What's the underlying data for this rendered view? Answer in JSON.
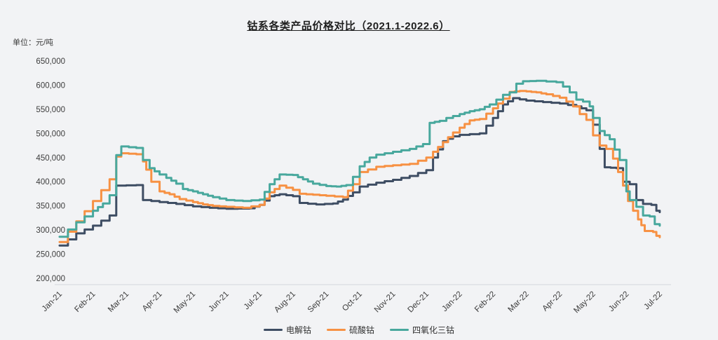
{
  "title": "钴系各类产品价格对比（2021.1-2022.6）",
  "unit_label": "单位：元/吨",
  "background_color": "#f2f3f5",
  "axis_line_color": "#e3e5e9",
  "tick_text_color": "#3c3c3c",
  "chart_data": {
    "type": "line",
    "title": "钴系各类产品价格对比（2021.1-2022.6）",
    "ylabel": "单位：元/吨",
    "grid": false,
    "legend_position": "bottom",
    "line_style": "step-weekly",
    "ylim": [
      200000,
      650000
    ],
    "y_ticks": [
      650000,
      600000,
      550000,
      500000,
      450000,
      400000,
      350000,
      300000,
      250000,
      200000
    ],
    "x_tick_labels": [
      "Jan-21",
      "Feb-21",
      "Mar-21",
      "Apr-21",
      "May-21",
      "Jun-21",
      "Jul-21",
      "Aug-21",
      "Sep-21",
      "Oct-21",
      "Nov-21",
      "Dec-21",
      "Jan-22",
      "Feb-22",
      "Mar-22",
      "Apr-22",
      "May-22",
      "Jun-22",
      "Jul-22"
    ],
    "x_unit_note": "x = months since Jan-21 tick (0 .. 18 = Jul-22)",
    "series": [
      {
        "name": "电解钴",
        "color": "#3e4d63",
        "points": [
          [
            0,
            268000
          ],
          [
            0.5,
            293000
          ],
          [
            1,
            309000
          ],
          [
            1.5,
            330000
          ],
          [
            1.7,
            392000
          ],
          [
            2.3,
            393000
          ],
          [
            2.5,
            362000
          ],
          [
            3,
            358000
          ],
          [
            3.5,
            354000
          ],
          [
            4,
            349000
          ],
          [
            4.5,
            346000
          ],
          [
            5,
            344000
          ],
          [
            5.7,
            345000
          ],
          [
            6,
            352000
          ],
          [
            6.3,
            370000
          ],
          [
            6.6,
            374000
          ],
          [
            7,
            370000
          ],
          [
            7.2,
            356000
          ],
          [
            7.7,
            353000
          ],
          [
            8.2,
            355000
          ],
          [
            8.5,
            363000
          ],
          [
            8.8,
            378000
          ],
          [
            9,
            390000
          ],
          [
            9.5,
            398000
          ],
          [
            10,
            404000
          ],
          [
            10.5,
            412000
          ],
          [
            11,
            424000
          ],
          [
            11.2,
            450000
          ],
          [
            11.5,
            484000
          ],
          [
            11.8,
            494000
          ],
          [
            12,
            497000
          ],
          [
            12.6,
            500000
          ],
          [
            13,
            532000
          ],
          [
            13.3,
            560000
          ],
          [
            13.6,
            573000
          ],
          [
            14,
            568000
          ],
          [
            14.5,
            565000
          ],
          [
            15,
            562000
          ],
          [
            15.5,
            556000
          ],
          [
            15.8,
            548000
          ],
          [
            16,
            518000
          ],
          [
            16.2,
            468000
          ],
          [
            16.35,
            430000
          ],
          [
            16.7,
            428000
          ],
          [
            16.9,
            400000
          ],
          [
            17.1,
            395000
          ],
          [
            17.3,
            362000
          ],
          [
            17.5,
            354000
          ],
          [
            17.75,
            352000
          ],
          [
            17.9,
            340000
          ],
          [
            18,
            337000
          ]
        ]
      },
      {
        "name": "硫酸钴",
        "color": "#f79143",
        "points": [
          [
            0,
            275000
          ],
          [
            0.5,
            318000
          ],
          [
            1,
            360000
          ],
          [
            1.5,
            405000
          ],
          [
            1.7,
            452000
          ],
          [
            1.85,
            459000
          ],
          [
            2.3,
            457000
          ],
          [
            2.5,
            442000
          ],
          [
            2.6,
            425000
          ],
          [
            2.75,
            400000
          ],
          [
            3,
            380000
          ],
          [
            3.3,
            374000
          ],
          [
            3.6,
            364000
          ],
          [
            4,
            358000
          ],
          [
            4.3,
            353000
          ],
          [
            4.6,
            350000
          ],
          [
            5,
            348000
          ],
          [
            5.5,
            346000
          ],
          [
            6,
            352000
          ],
          [
            6.3,
            378000
          ],
          [
            6.6,
            392000
          ],
          [
            7,
            383000
          ],
          [
            7.2,
            375000
          ],
          [
            7.6,
            373000
          ],
          [
            8,
            371000
          ],
          [
            8.5,
            368000
          ],
          [
            8.8,
            395000
          ],
          [
            9,
            420000
          ],
          [
            9.5,
            431000
          ],
          [
            10,
            434000
          ],
          [
            10.5,
            437000
          ],
          [
            11,
            450000
          ],
          [
            11.2,
            462000
          ],
          [
            11.5,
            482000
          ],
          [
            11.8,
            502000
          ],
          [
            12,
            512000
          ],
          [
            12.3,
            527000
          ],
          [
            12.6,
            530000
          ],
          [
            13,
            552000
          ],
          [
            13.3,
            572000
          ],
          [
            13.5,
            586000
          ],
          [
            13.8,
            588000
          ],
          [
            14,
            587000
          ],
          [
            14.3,
            585000
          ],
          [
            14.6,
            581000
          ],
          [
            15,
            574000
          ],
          [
            15.2,
            566000
          ],
          [
            15.4,
            556000
          ],
          [
            15.6,
            540000
          ],
          [
            15.8,
            528000
          ],
          [
            16,
            496000
          ],
          [
            16.2,
            475000
          ],
          [
            16.4,
            468000
          ],
          [
            16.6,
            448000
          ],
          [
            16.75,
            420000
          ],
          [
            16.9,
            392000
          ],
          [
            17.05,
            360000
          ],
          [
            17.2,
            340000
          ],
          [
            17.35,
            322000
          ],
          [
            17.45,
            310000
          ],
          [
            17.55,
            298000
          ],
          [
            17.8,
            296000
          ],
          [
            17.9,
            288000
          ],
          [
            18,
            285000
          ]
        ]
      },
      {
        "name": "四氧化三钴",
        "color": "#48a89d",
        "points": [
          [
            0,
            286000
          ],
          [
            0.5,
            316000
          ],
          [
            1,
            340000
          ],
          [
            1.3,
            355000
          ],
          [
            1.5,
            372000
          ],
          [
            1.7,
            455000
          ],
          [
            1.85,
            473000
          ],
          [
            2.3,
            470000
          ],
          [
            2.5,
            445000
          ],
          [
            2.7,
            428000
          ],
          [
            3,
            415000
          ],
          [
            3.2,
            408000
          ],
          [
            3.5,
            396000
          ],
          [
            3.7,
            385000
          ],
          [
            4,
            380000
          ],
          [
            4.3,
            374000
          ],
          [
            4.6,
            368000
          ],
          [
            5,
            362000
          ],
          [
            5.5,
            360000
          ],
          [
            6,
            363000
          ],
          [
            6.3,
            395000
          ],
          [
            6.6,
            415000
          ],
          [
            7,
            414000
          ],
          [
            7.3,
            405000
          ],
          [
            7.6,
            396000
          ],
          [
            8,
            391000
          ],
          [
            8.3,
            390000
          ],
          [
            8.6,
            393000
          ],
          [
            8.8,
            410000
          ],
          [
            9,
            432000
          ],
          [
            9.3,
            450000
          ],
          [
            9.5,
            456000
          ],
          [
            10,
            462000
          ],
          [
            10.5,
            468000
          ],
          [
            10.9,
            478000
          ],
          [
            11.1,
            522000
          ],
          [
            11.4,
            526000
          ],
          [
            11.6,
            532000
          ],
          [
            12,
            540000
          ],
          [
            12.3,
            546000
          ],
          [
            12.6,
            550000
          ],
          [
            12.9,
            560000
          ],
          [
            13.1,
            570000
          ],
          [
            13.3,
            580000
          ],
          [
            13.5,
            585000
          ],
          [
            13.7,
            603000
          ],
          [
            13.9,
            608000
          ],
          [
            14.3,
            609000
          ],
          [
            14.9,
            606000
          ],
          [
            15.1,
            597000
          ],
          [
            15.3,
            585000
          ],
          [
            15.5,
            570000
          ],
          [
            15.7,
            566000
          ],
          [
            15.9,
            556000
          ],
          [
            16,
            532000
          ],
          [
            16.2,
            505000
          ],
          [
            16.5,
            488000
          ],
          [
            16.8,
            445000
          ],
          [
            17,
            380000
          ],
          [
            17.1,
            362000
          ],
          [
            17.3,
            348000
          ],
          [
            17.5,
            330000
          ],
          [
            17.7,
            328000
          ],
          [
            17.85,
            312000
          ],
          [
            18,
            309000
          ]
        ]
      }
    ]
  }
}
